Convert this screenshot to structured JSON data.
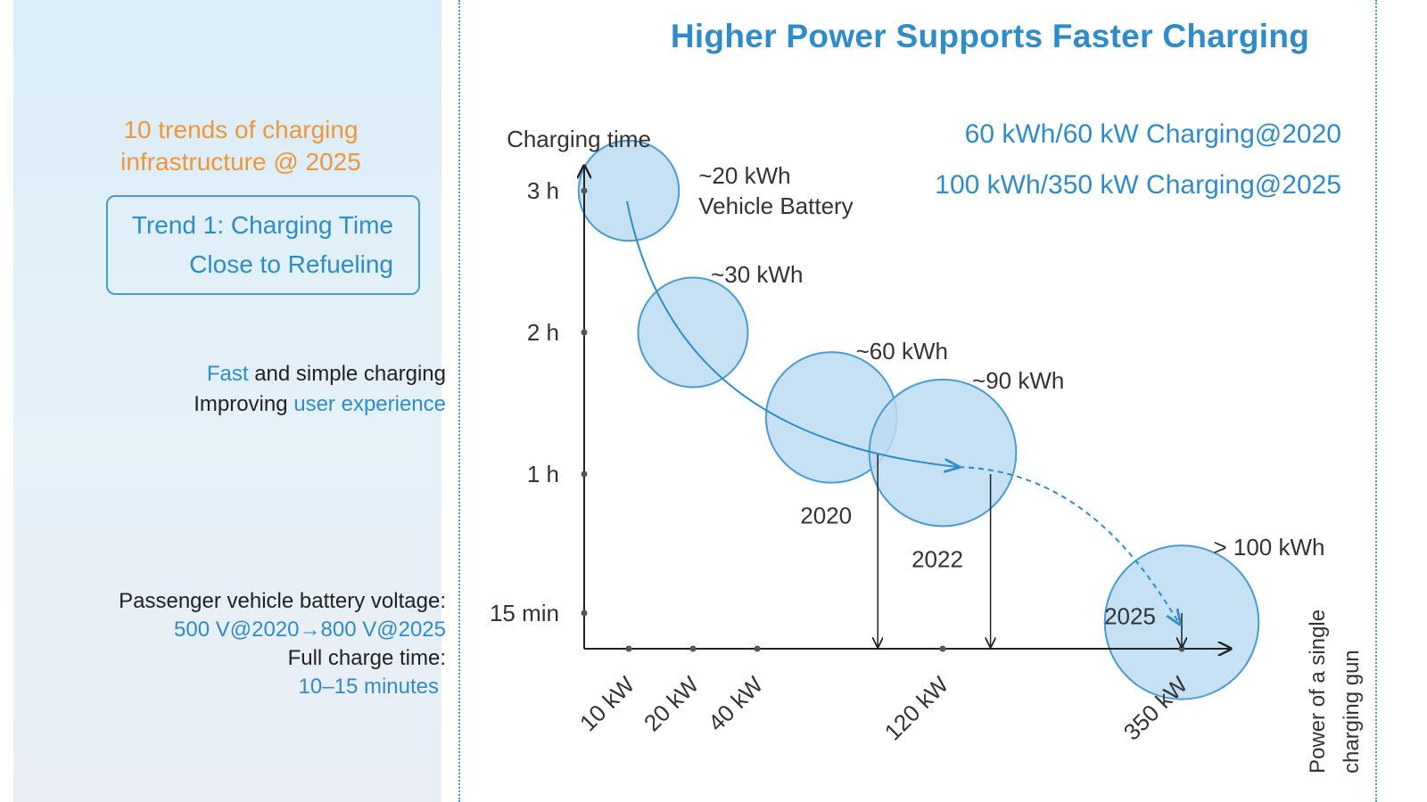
{
  "left": {
    "trends_heading_line1": "10 trends of charging",
    "trends_heading_line2": "infrastructure @ 2025",
    "trend_box_line1": "Trend 1: Charging Time",
    "trend_box_line2": "Close to Refueling",
    "fast_word": "Fast",
    "fast_rest": " and simple charging",
    "improving_word": "Improving ",
    "ux_words": "user experience",
    "voltage_label": "Passenger vehicle battery voltage:",
    "voltage_value": "500 V@2020→800 V@2025",
    "charge_time_label": "Full charge time:",
    "charge_time_value": "10–15 minutes"
  },
  "main": {
    "title": "Higher Power Supports Faster Charging",
    "legend_2020": "60 kWh/60 kW Charging@2020",
    "legend_2025": "100 kWh/350 kW Charging@2025"
  },
  "colors": {
    "accent_blue": "#2f8cc8",
    "orange": "#f0953a",
    "bubble_fill": "#bcdcf1",
    "bubble_stroke": "#4a9ccf"
  },
  "chart_data": {
    "type": "scatter",
    "title": "Higher Power Supports Faster Charging",
    "ylabel": "Charging time",
    "xlabel_line1": "Power of a single",
    "xlabel_line2": "charging gun",
    "y_ticks": [
      {
        "label": "3 h",
        "hours": 3
      },
      {
        "label": "2 h",
        "hours": 2
      },
      {
        "label": "1 h",
        "hours": 1
      },
      {
        "label": "15 min",
        "hours": 0.25
      }
    ],
    "x_ticks": [
      {
        "label": "10 kW",
        "rank": 1
      },
      {
        "label": "20 kW",
        "rank": 2
      },
      {
        "label": "40 kW",
        "rank": 3
      },
      {
        "label": "120 kW",
        "rank": 5
      },
      {
        "label": "350 kW",
        "rank": 7
      }
    ],
    "bubbles": [
      {
        "label": "~20 kWh",
        "label2": "Vehicle Battery",
        "year": "",
        "kwh": 20,
        "rank": 1,
        "hours": 3
      },
      {
        "label": "~30 kWh",
        "label2": "",
        "year": "",
        "kwh": 30,
        "rank": 2,
        "hours": 2
      },
      {
        "label": "~60 kWh",
        "label2": "",
        "year": "2020",
        "kwh": 60,
        "rank": 3.8,
        "hours": 1.4
      },
      {
        "label": "~90 kWh",
        "label2": "",
        "year": "2022",
        "kwh": 90,
        "rank": 5,
        "hours": 1.15
      },
      {
        "label": "> 100 kWh",
        "label2": "",
        "year": "2025",
        "kwh": 105,
        "rank": 7,
        "hours": 0.2
      }
    ],
    "drop_ranks": [
      4.3,
      5.4,
      7
    ],
    "trend": "Charging time falls as charging power rises"
  }
}
